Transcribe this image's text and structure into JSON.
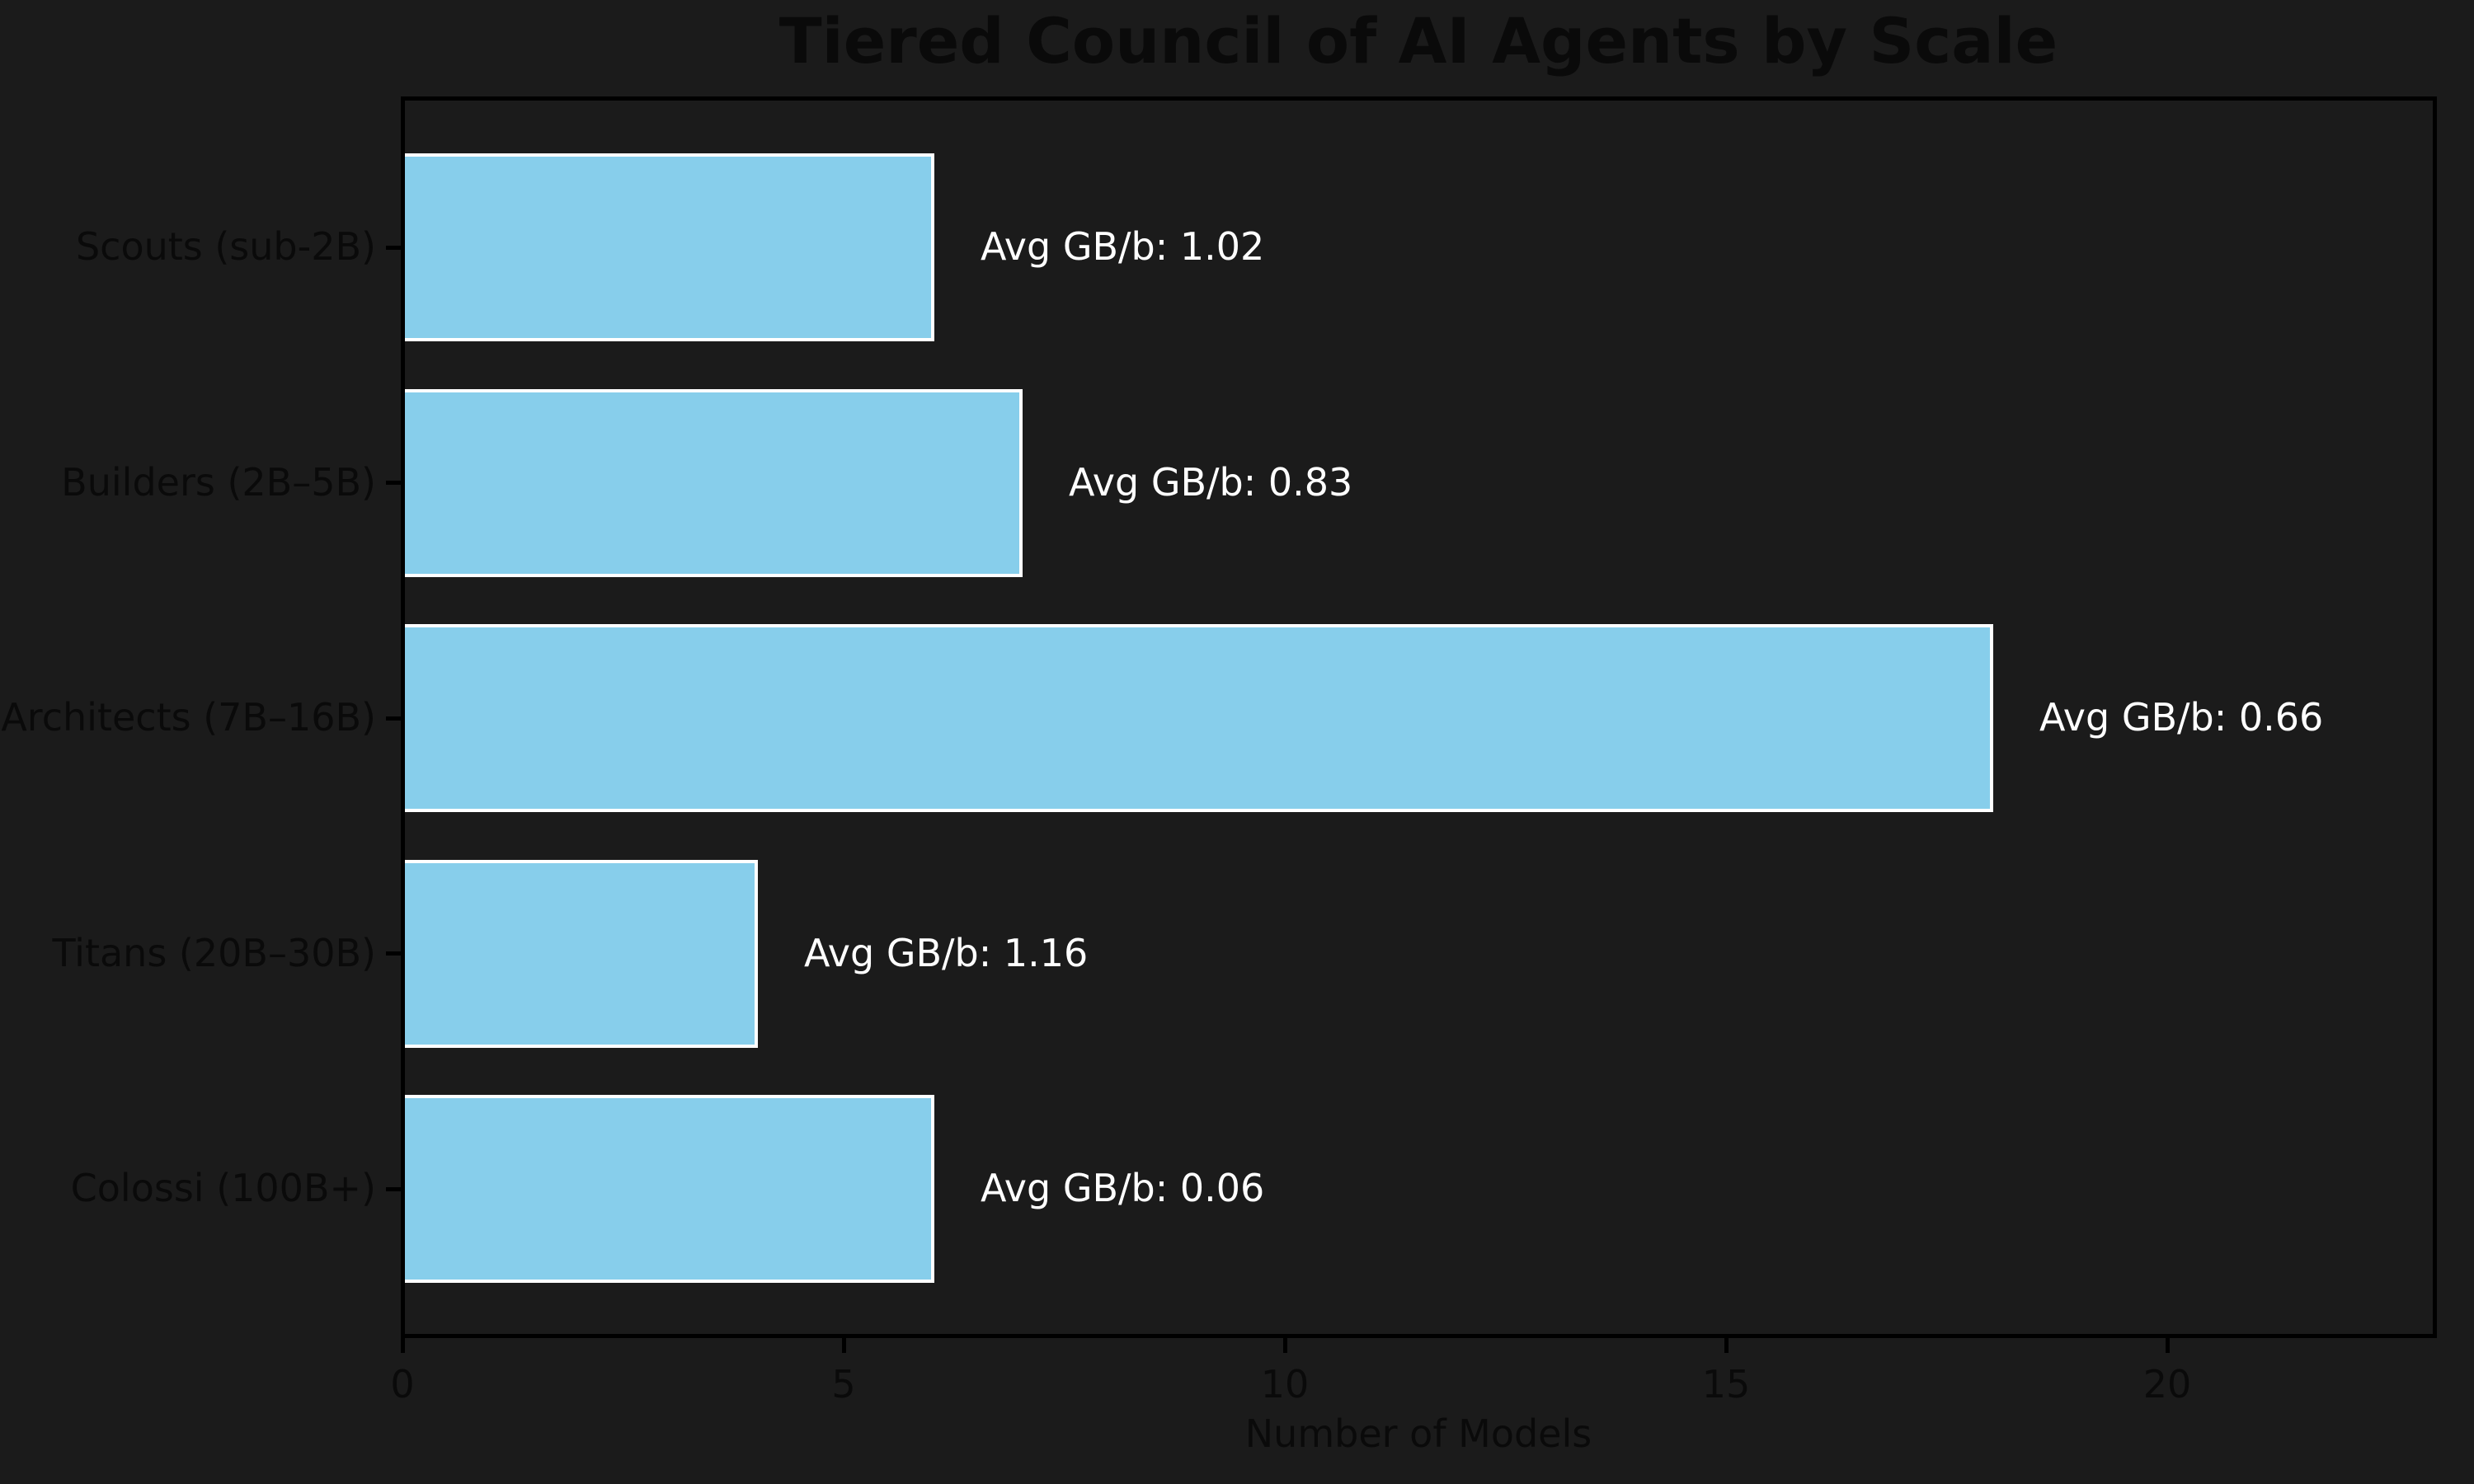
{
  "chart_data": {
    "type": "bar",
    "orientation": "horizontal",
    "title": "Tiered Council of AI Agents by Scale",
    "xlabel": "Number of Models",
    "ylabel": "",
    "categories": [
      "Scouts (sub-2B)",
      "Builders (2B–5B)",
      "Architects (7B–16B)",
      "Titans (20B–30B)",
      "Colossi (100B+)"
    ],
    "values": [
      6,
      7,
      18,
      4,
      6
    ],
    "annotations": [
      "Avg GB/b: 1.02",
      "Avg GB/b: 0.83",
      "Avg GB/b: 0.66",
      "Avg GB/b: 1.16",
      "Avg GB/b: 0.06"
    ],
    "avg_gb_per_b": [
      1.02,
      0.83,
      0.66,
      1.16,
      0.06
    ],
    "x_ticks": [
      "0",
      "5",
      "10",
      "15",
      "20"
    ],
    "x_tick_values": [
      0,
      5,
      10,
      15,
      20
    ],
    "xlim": [
      0,
      23
    ],
    "grid": false,
    "legend": null,
    "colors": {
      "background": "#1b1b1b",
      "bar_fill": "#87CEEB",
      "bar_edge": "#ffffff",
      "spine": "#000000",
      "label_text": "#0a0a0a",
      "annotation_text": "#ffffff"
    }
  }
}
